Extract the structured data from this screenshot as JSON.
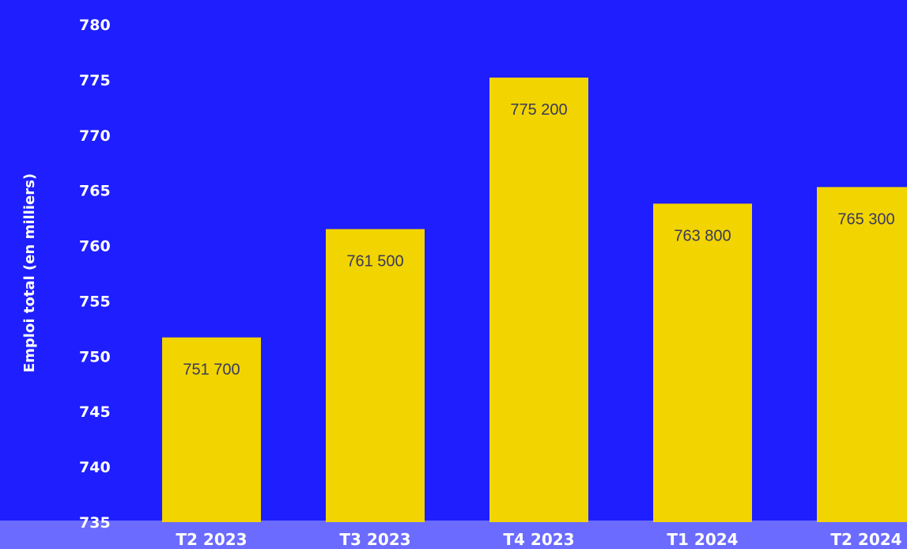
{
  "chart_data": {
    "type": "bar",
    "title": "",
    "xlabel": "",
    "ylabel": "Emploi total (en milliers)",
    "categories": [
      "T2 2023",
      "T3 2023",
      "T4 2023",
      "T1 2024",
      "T2 2024"
    ],
    "values": [
      751.7,
      761.5,
      775.2,
      763.8,
      765.3
    ],
    "data_labels": [
      "751 700",
      "761 500",
      "775 200",
      "763 800",
      "765 300"
    ],
    "ylim": [
      735,
      780
    ],
    "yticks": [
      735,
      740,
      745,
      750,
      755,
      760,
      765,
      770,
      775,
      780
    ],
    "grid": false,
    "legend": "none",
    "colors": {
      "background": "#1e1eff",
      "bar": "#f2d400",
      "axis_band": "#6b6bff",
      "label_text": "#ffffff",
      "data_label_text": "#3a3a5a"
    }
  }
}
